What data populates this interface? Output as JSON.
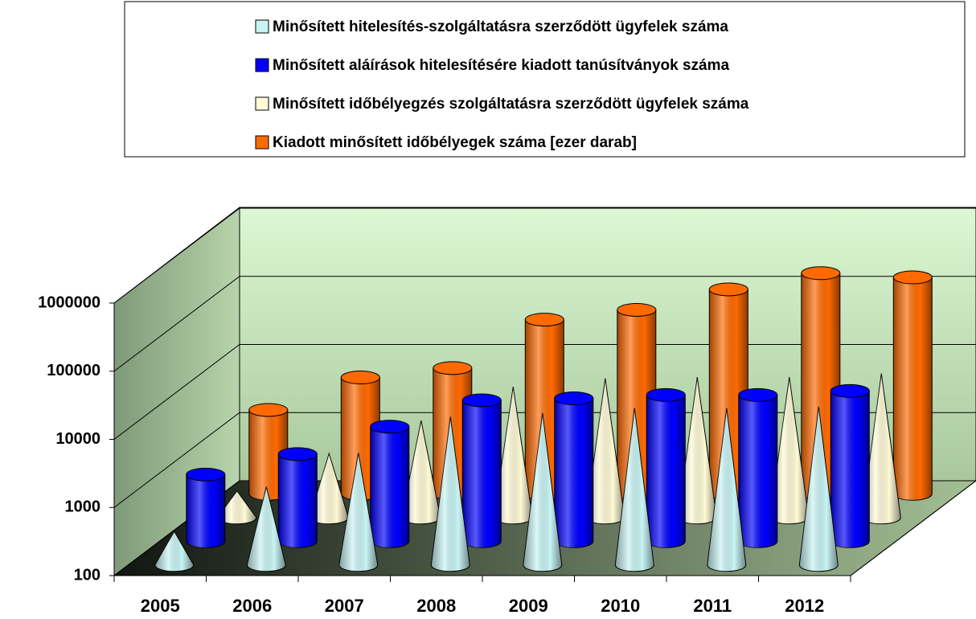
{
  "chart_data": {
    "type": "bar3d",
    "categories": [
      "2005",
      "2006",
      "2007",
      "2008",
      "2009",
      "2010",
      "2011",
      "2012"
    ],
    "series": [
      {
        "name": "Minősített hitelesítés-szolgáltatásra szerződött ügyfelek száma",
        "color": "#c8f4f4",
        "shape": "cone",
        "values": [
          310,
          1400,
          4400,
          15000,
          17000,
          20000,
          20000,
          21000
        ]
      },
      {
        "name": "Minősített aláírások hitelesítésére kiadott tanúsítványok száma",
        "color": "#0000ff",
        "shape": "cylinder",
        "values": [
          950,
          1900,
          4800,
          11700,
          12500,
          14000,
          14000,
          16000
        ]
      },
      {
        "name": "Minősített időbélyegzés szolgáltatásra szerződött ügyfelek száma",
        "color": "#fffbd6",
        "shape": "cone",
        "values": [
          245,
          870,
          2650,
          8300,
          11000,
          11500,
          11500,
          13000
        ]
      },
      {
        "name": "Kiadott minősített időbélyegek száma [ezer darab]",
        "color": "#ff6a00",
        "shape": "cylinder",
        "values": [
          1700,
          5100,
          7000,
          36000,
          50000,
          100000,
          173000,
          150000
        ]
      }
    ],
    "log_scale": true,
    "ylim": [
      100,
      1000000
    ],
    "yticks": [
      100,
      1000,
      10000,
      100000,
      1000000
    ],
    "grid": true,
    "legend": "top"
  }
}
